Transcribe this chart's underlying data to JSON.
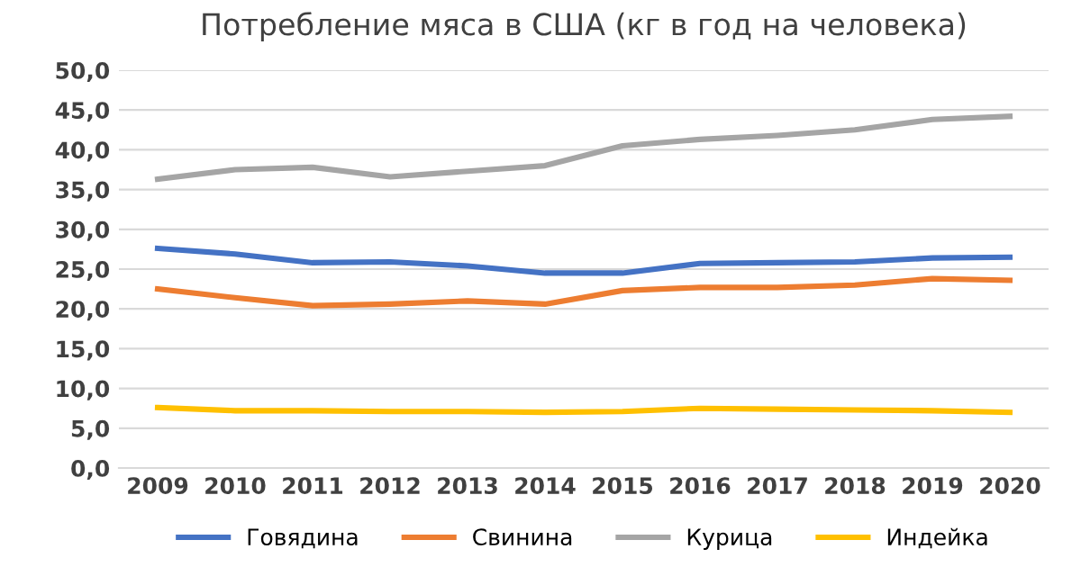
{
  "chart_data": {
    "type": "line",
    "title": "Потребление мяса в США (кг в год на человека)",
    "categories": [
      "2009",
      "2010",
      "2011",
      "2012",
      "2013",
      "2014",
      "2015",
      "2016",
      "2017",
      "2018",
      "2019",
      "2020"
    ],
    "series": [
      {
        "name": "Говядина",
        "color": "#4472c4",
        "values": [
          27.6,
          26.9,
          25.8,
          25.9,
          25.4,
          24.5,
          24.5,
          25.7,
          25.8,
          25.9,
          26.4,
          26.5
        ]
      },
      {
        "name": "Свинина",
        "color": "#ed7d31",
        "values": [
          22.5,
          21.4,
          20.4,
          20.6,
          21.0,
          20.6,
          22.3,
          22.7,
          22.7,
          23.0,
          23.8,
          23.6
        ]
      },
      {
        "name": "Курица",
        "color": "#a5a5a5",
        "values": [
          36.3,
          37.5,
          37.8,
          36.6,
          37.3,
          38.0,
          40.5,
          41.3,
          41.8,
          42.5,
          43.8,
          44.2
        ]
      },
      {
        "name": "Индейка",
        "color": "#ffc000",
        "values": [
          7.6,
          7.2,
          7.2,
          7.1,
          7.1,
          7.0,
          7.1,
          7.5,
          7.4,
          7.3,
          7.2,
          7.0
        ]
      }
    ],
    "ylim": [
      0,
      50
    ],
    "yticks": [
      {
        "value": 0,
        "label": "0,0"
      },
      {
        "value": 5,
        "label": "5,0"
      },
      {
        "value": 10,
        "label": "10,0"
      },
      {
        "value": 15,
        "label": "15,0"
      },
      {
        "value": 20,
        "label": "20,0"
      },
      {
        "value": 25,
        "label": "25,0"
      },
      {
        "value": 30,
        "label": "30,0"
      },
      {
        "value": 35,
        "label": "35,0"
      },
      {
        "value": 40,
        "label": "40,0"
      },
      {
        "value": 45,
        "label": "45,0"
      },
      {
        "value": 50,
        "label": "50,0"
      }
    ],
    "grid": "y",
    "legend": "bottom",
    "marker": "none",
    "line_style": "solid"
  }
}
